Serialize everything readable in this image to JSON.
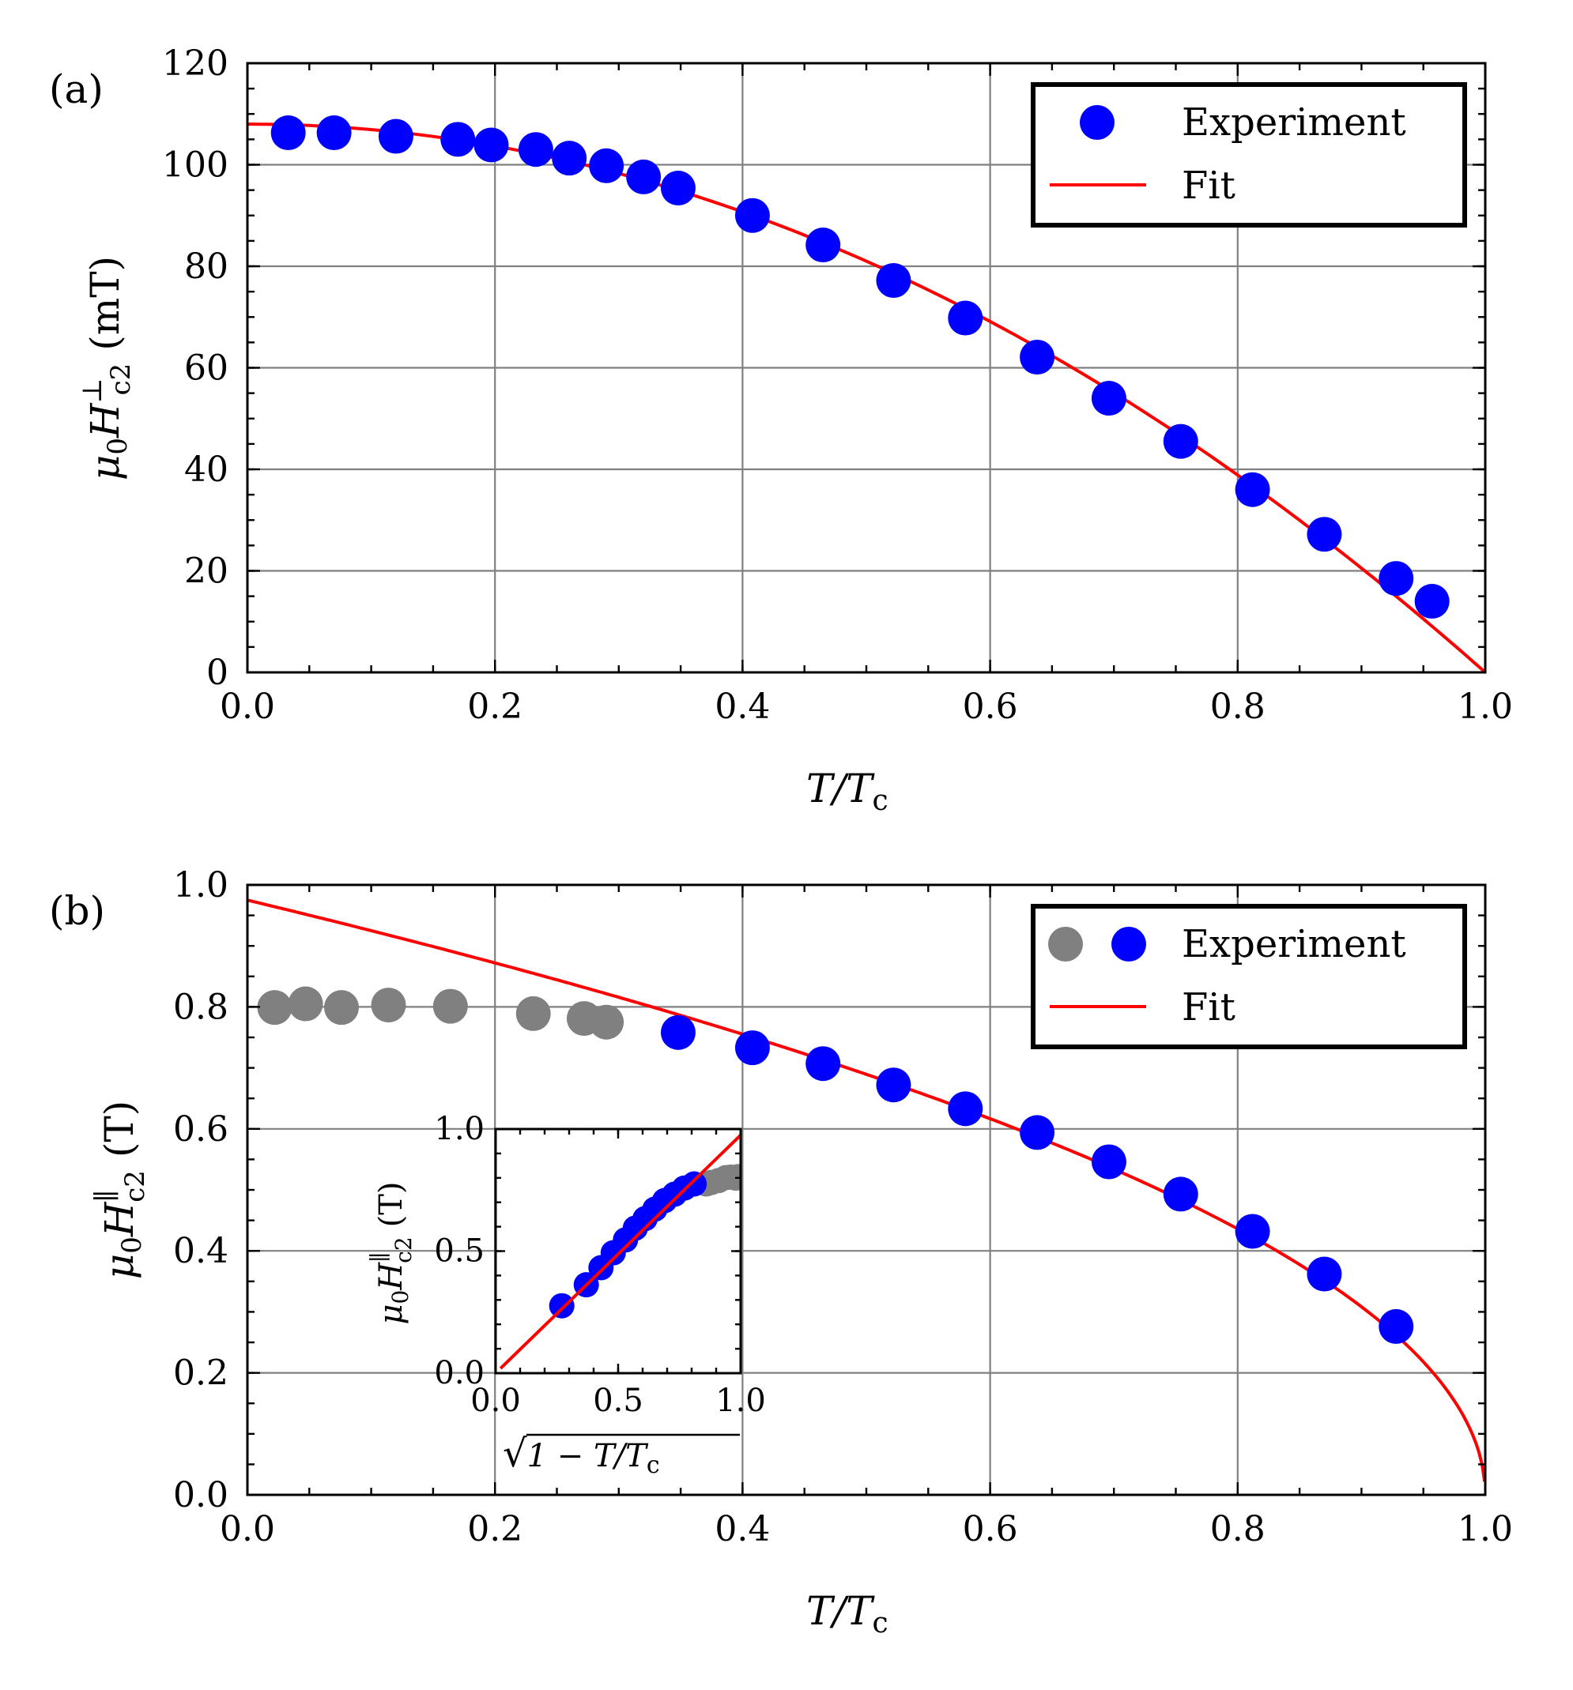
{
  "colors": {
    "experiment": "#0000ff",
    "excluded": "#808080",
    "fit": "#ff0000",
    "grid": "#808080"
  },
  "chart_data": [
    {
      "id": "a",
      "type": "scatter",
      "panel_label": "(a)",
      "xlabel": "T/Tc",
      "xlabel_main": "T/T",
      "xlabel_sub": "c",
      "ylabel": "μ0H⊥c2 (mT)",
      "ylabel_mu": "μ",
      "ylabel_mu_sub": "0",
      "ylabel_H": "H",
      "ylabel_sup": "⊥",
      "ylabel_sub": "c2",
      "ylabel_unit": "(mT)",
      "xlim": [
        0,
        1
      ],
      "ylim": [
        0,
        120
      ],
      "xticks": [
        "0.0",
        "0.2",
        "0.4",
        "0.6",
        "0.8",
        "1.0"
      ],
      "yticks": [
        "0",
        "20",
        "40",
        "60",
        "80",
        "100",
        "120"
      ],
      "grid": true,
      "legend": {
        "position": "top-right",
        "experiment_label": "Experiment",
        "fit_label": "Fit"
      },
      "series": [
        {
          "name": "Experiment",
          "x": [
            0.033,
            0.07,
            0.12,
            0.17,
            0.197,
            0.233,
            0.26,
            0.29,
            0.32,
            0.348,
            0.408,
            0.465,
            0.522,
            0.58,
            0.638,
            0.696,
            0.754,
            0.812,
            0.87,
            0.928,
            0.957
          ],
          "y": [
            106.3,
            106.3,
            105.6,
            105.0,
            103.9,
            103.0,
            101.3,
            99.8,
            97.6,
            95.4,
            90.0,
            84.2,
            77.2,
            69.8,
            62.1,
            54.0,
            45.5,
            36.0,
            27.2,
            18.5,
            14.0
          ]
        },
        {
          "name": "Fit",
          "model": "y0*(1-t^2)",
          "y0": 108
        }
      ]
    },
    {
      "id": "b",
      "type": "scatter",
      "panel_label": "(b)",
      "xlabel": "T/Tc",
      "xlabel_main": "T/T",
      "xlabel_sub": "c",
      "ylabel": "μ0H∥c2 (T)",
      "ylabel_mu": "μ",
      "ylabel_mu_sub": "0",
      "ylabel_H": "H",
      "ylabel_sup": "∥",
      "ylabel_sub": "c2",
      "ylabel_unit": "(T)",
      "xlim": [
        0,
        1
      ],
      "ylim": [
        0,
        1
      ],
      "xticks": [
        "0.0",
        "0.2",
        "0.4",
        "0.6",
        "0.8",
        "1.0"
      ],
      "yticks": [
        "0.0",
        "0.2",
        "0.4",
        "0.6",
        "0.8",
        "1.0"
      ],
      "grid": true,
      "legend": {
        "position": "top-right",
        "experiment_label": "Experiment",
        "fit_label": "Fit"
      },
      "series": [
        {
          "name": "Experiment (excluded)",
          "x": [
            0.022,
            0.047,
            0.076,
            0.114,
            0.164,
            0.231,
            0.272,
            0.29
          ],
          "y": [
            0.799,
            0.805,
            0.799,
            0.803,
            0.801,
            0.789,
            0.781,
            0.775
          ]
        },
        {
          "name": "Experiment",
          "x": [
            0.348,
            0.408,
            0.465,
            0.522,
            0.58,
            0.638,
            0.696,
            0.754,
            0.812,
            0.87,
            0.928
          ],
          "y": [
            0.758,
            0.733,
            0.707,
            0.672,
            0.633,
            0.594,
            0.546,
            0.493,
            0.432,
            0.362,
            0.276
          ]
        },
        {
          "name": "Fit",
          "model": "y0*(1-t)^0.5",
          "y0": 0.975
        }
      ],
      "inset": {
        "xlabel": "sqrt(1 - T/Tc)",
        "xlabel_sqrt": "√",
        "xlabel_body": "1 − T/T",
        "xlabel_sub": "c",
        "ylabel": "μ0H∥c2 (T)",
        "xlim": [
          0,
          1
        ],
        "ylim": [
          0,
          1
        ],
        "xticks": [
          "0.0",
          "0.5",
          "1.0"
        ],
        "yticks": [
          "0.0",
          "0.5",
          "1.0"
        ],
        "excluded_x": [
          0.86,
          0.88,
          0.91,
          0.94,
          0.96,
          0.98,
          0.99
        ],
        "excluded_y": [
          0.775,
          0.781,
          0.789,
          0.801,
          0.803,
          0.799,
          0.805
        ],
        "experiment_x": [
          0.27,
          0.37,
          0.43,
          0.48,
          0.53,
          0.57,
          0.61,
          0.65,
          0.69,
          0.73,
          0.77,
          0.81
        ],
        "experiment_y": [
          0.276,
          0.362,
          0.432,
          0.493,
          0.546,
          0.594,
          0.633,
          0.672,
          0.707,
          0.733,
          0.758,
          0.775
        ],
        "fit_slope": 0.975
      }
    }
  ]
}
